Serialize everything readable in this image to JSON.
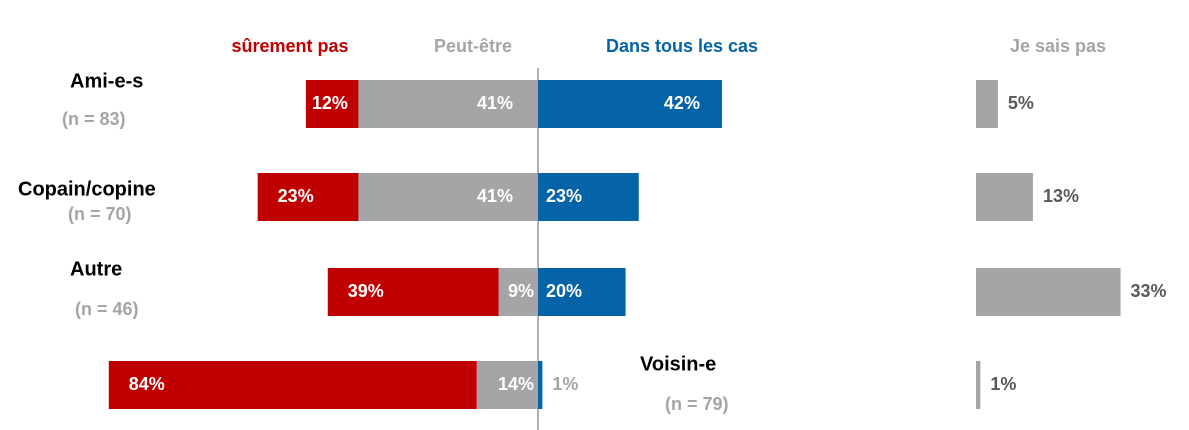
{
  "chart_data": {
    "type": "diverging_bar",
    "categories": [
      "Ami-e-s",
      "Copain/copine",
      "Autre",
      "Voisin-e"
    ],
    "n_labels": [
      "(n = 83)",
      "(n = 70)",
      "(n = 46)",
      "(n = 79)"
    ],
    "series": [
      {
        "name": "sûrement pas",
        "color": "#c00000",
        "side": "left",
        "values": [
          12,
          23,
          39,
          84
        ],
        "value_labels": [
          "12%",
          "23%",
          "39%",
          "84%"
        ]
      },
      {
        "name": "Peut-être",
        "color": "#a5a5a8",
        "side": "left",
        "values": [
          41,
          41,
          9,
          14
        ],
        "value_labels": [
          "41%",
          "41%",
          "9%",
          "14%"
        ]
      },
      {
        "name": "Dans tous les cas",
        "color": "#0563a8",
        "side": "right",
        "values": [
          42,
          23,
          20,
          1
        ],
        "value_labels": [
          "42%",
          "23%",
          "20%",
          "1%"
        ]
      },
      {
        "name": "Je sais pas",
        "color": "#a5a5a8",
        "side": "separate",
        "values": [
          5,
          13,
          33,
          1
        ],
        "value_labels": [
          "5%",
          "13%",
          "33%",
          "1%"
        ]
      }
    ]
  }
}
